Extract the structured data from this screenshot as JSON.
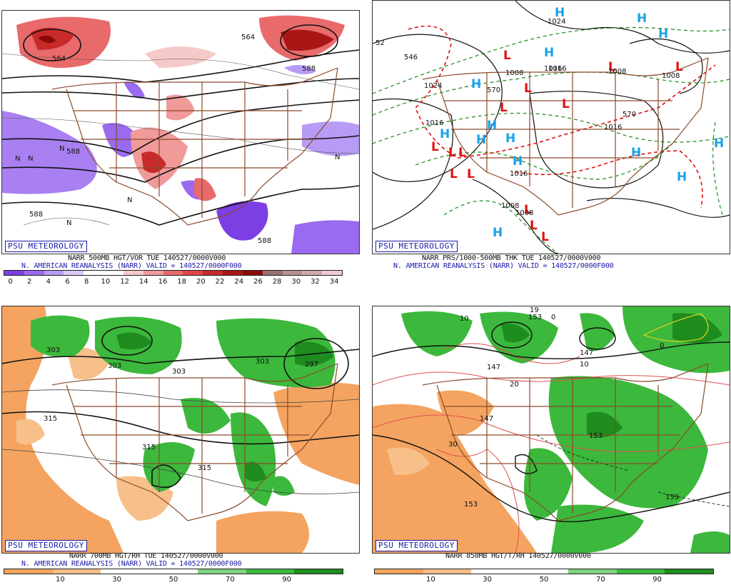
{
  "panels": {
    "p500": {
      "badge": "PSU METEOROLOGY",
      "line1": "NARR 500MB HGT/VOR TUE 140527/0000V000",
      "line2": "N. AMERICAN REANALYSIS (NARR) VALID = 140527/0000F000",
      "colorbar": {
        "colors": [
          "#7b3fe4",
          "#9a6af0",
          "#b89bf4",
          "#d8c9f8",
          "#ffffff",
          "#ffffff",
          "#f6c9c9",
          "#f09a9a",
          "#e96a6a",
          "#de4646",
          "#c82a2a",
          "#a81616",
          "#8a0a0a",
          "#9a7070",
          "#b89090",
          "#d2aaaa",
          "#f0c8d8"
        ],
        "labels": [
          "0",
          "2",
          "4",
          "6",
          "8",
          "10",
          "12",
          "14",
          "16",
          "18",
          "20",
          "22",
          "24",
          "26",
          "28",
          "30",
          "32",
          "34"
        ]
      },
      "contour_labels": [
        "564",
        "588",
        "588",
        "588",
        "588",
        "564",
        "N",
        "N",
        "N",
        "N",
        "N",
        "N"
      ]
    },
    "pthk": {
      "badge": "PSU METEOROLOGY",
      "line1": "NARR PRS/1000-500MB THK TUE 140527/0000V000",
      "line2": "N. AMERICAN REANALYSIS (NARR) VALID = 140527/0000F000",
      "contour_labels": [
        "1024",
        "1016",
        "1016",
        "1008",
        "1008",
        "1008",
        "1008",
        "1016",
        "1016",
        "1024",
        "1016",
        "1008",
        "546",
        "570",
        "570",
        "52"
      ],
      "h_letter": "H",
      "l_letter": "L"
    },
    "p700": {
      "badge": "PSU METEOROLOGY",
      "line1": "NARR 700MB HGT/RH TUE 140527/0000V000",
      "line2": "N. AMERICAN REANALYSIS (NARR) VALID = 140527/0000F000",
      "colorbar": {
        "colors": [
          "#f4a460",
          "#f7c08a",
          "#ffffff",
          "#ffffff",
          "#7fd07f",
          "#3cb83c",
          "#1e8c1e"
        ],
        "labels": [
          "10",
          "30",
          "50",
          "70",
          "90"
        ]
      },
      "contour_labels": [
        "303",
        "303",
        "303",
        "303",
        "297",
        "315",
        "315",
        "315"
      ]
    },
    "p850": {
      "badge": "PSU METEOROLOGY",
      "line1": "NARR 850MB HGT/T/RH 140527/0000V000",
      "line2": "",
      "colorbar": {
        "colors": [
          "#f4a460",
          "#f7c08a",
          "#ffffff",
          "#ffffff",
          "#7fd07f",
          "#3cb83c",
          "#1e8c1e"
        ],
        "labels": [
          "10",
          "30",
          "50",
          "70",
          "90"
        ]
      },
      "contour_labels": [
        "153",
        "147",
        "147",
        "147",
        "153",
        "153",
        "159",
        "10",
        "10",
        "20",
        "30",
        "19",
        "0",
        "0"
      ]
    }
  },
  "colors": {
    "map_border": "#8b4a2b",
    "label_blue": "#1a1aa6",
    "high_color": "#1aa3e8",
    "low_color": "#e01010",
    "rh_green": "#3cb83c",
    "dry_orange": "#f4a460"
  }
}
